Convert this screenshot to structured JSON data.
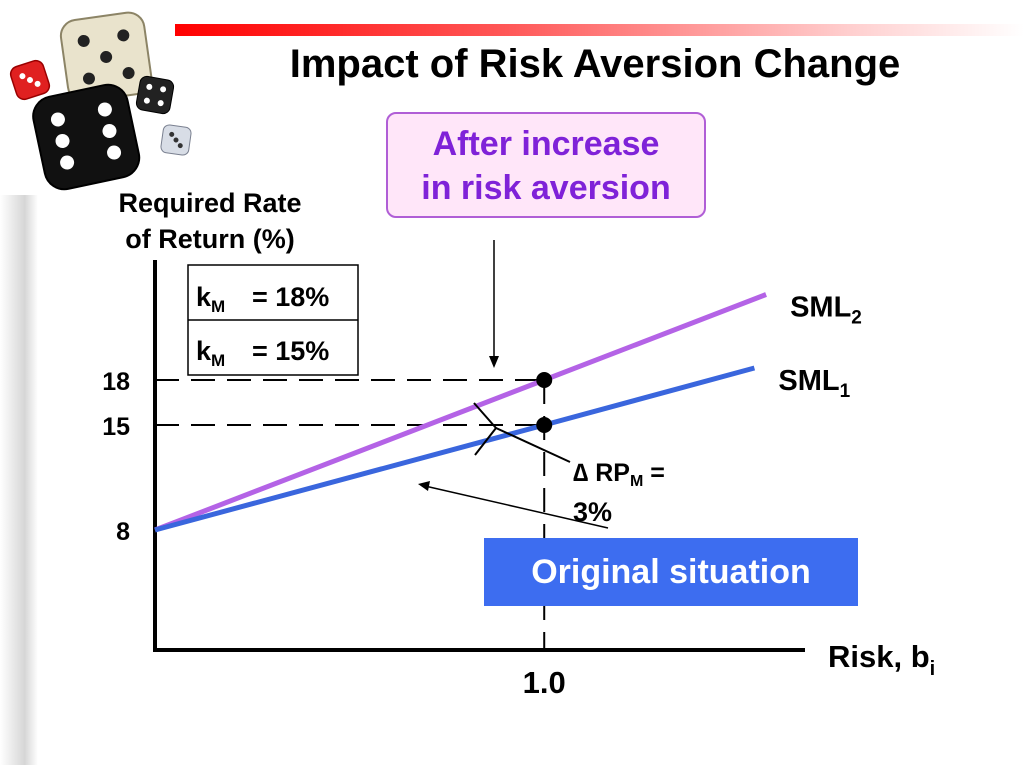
{
  "slide": {
    "title": "Impact of Risk Aversion Change",
    "callout": {
      "line1": "After increase",
      "line2": "in risk aversion"
    },
    "original_box": "Original situation",
    "decoration": "dice-image"
  },
  "chart_data": {
    "type": "line",
    "title": "Impact of Risk Aversion Change",
    "ylabel": [
      "Required Rate",
      "of Return (%)"
    ],
    "xlabel": {
      "main": "Risk, b",
      "sub": "i"
    },
    "y_ticks": [
      {
        "value": 18,
        "label": "18"
      },
      {
        "value": 15,
        "label": "15"
      },
      {
        "value": 8,
        "label": "8"
      }
    ],
    "x_ticks": [
      {
        "value": 1.0,
        "label": "1.0"
      }
    ],
    "xlim": [
      0,
      1.67
    ],
    "ylim": [
      0,
      26
    ],
    "series": [
      {
        "name": "SML",
        "sub": "2",
        "color": "#b463e6",
        "points": [
          [
            0,
            8
          ],
          [
            1.0,
            18
          ],
          [
            1.57,
            23.7
          ]
        ]
      },
      {
        "name": "SML",
        "sub": "1",
        "color": "#3a66dd",
        "points": [
          [
            0,
            8
          ],
          [
            1.0,
            15
          ],
          [
            1.54,
            18.8
          ]
        ]
      }
    ],
    "markers": [
      {
        "x": 1.0,
        "y": 18
      },
      {
        "x": 1.0,
        "y": 15
      }
    ],
    "km_table": [
      {
        "k": "k",
        "sub": "M",
        "value": "= 18%"
      },
      {
        "k": "k",
        "sub": "M",
        "value": "= 15%"
      }
    ],
    "annotation": {
      "delta": "∆",
      "text": " RP",
      "sub": "M",
      "suffix": " =",
      "line2": "3%"
    }
  }
}
